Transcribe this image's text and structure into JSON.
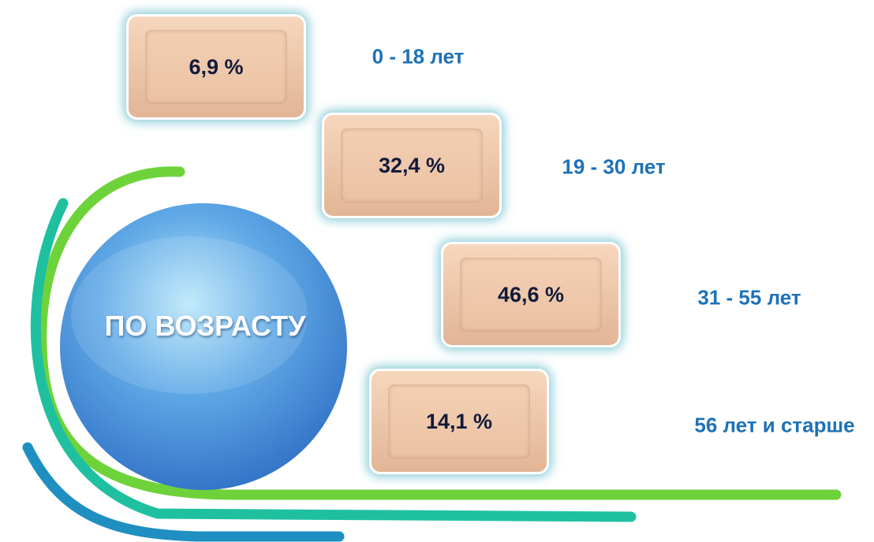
{
  "title": "ПО ВОЗРАСТУ",
  "items": [
    {
      "value": "6,9 %",
      "label": "0 - 18 лет"
    },
    {
      "value": "32,4 %",
      "label": "19 - 30 лет"
    },
    {
      "value": "46,6 %",
      "label": "31 - 55 лет"
    },
    {
      "value": "14,1 %",
      "label": "56 лет и старше"
    }
  ]
}
